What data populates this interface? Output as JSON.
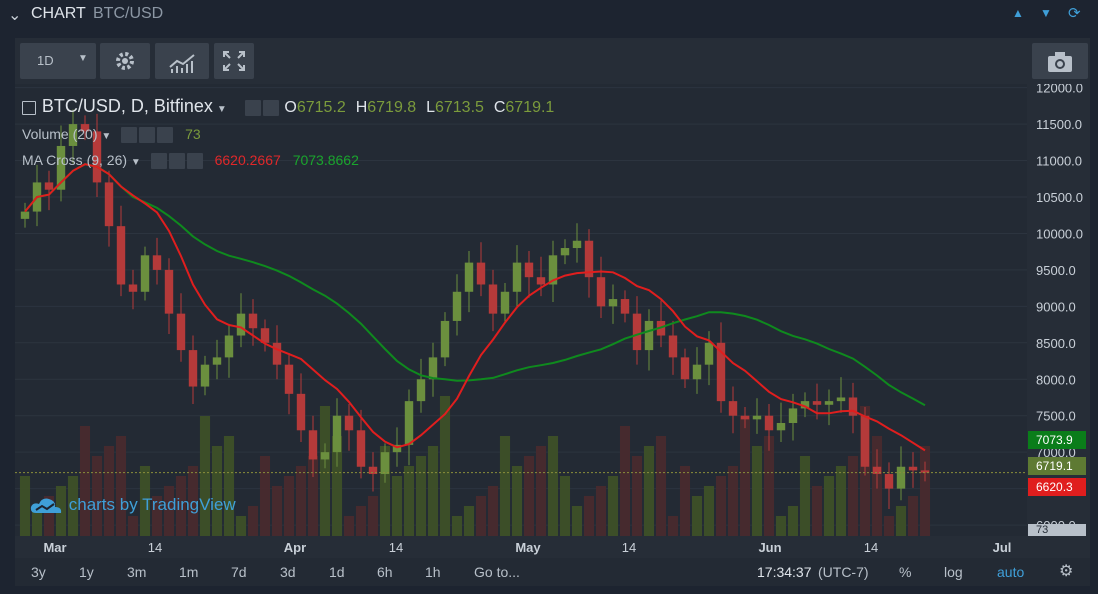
{
  "header": {
    "chevron": "❯",
    "title": "CHART",
    "symbol": "BTC/USD"
  },
  "toolbar": {
    "interval": "1D",
    "camera_icon": "camera-icon"
  },
  "legend": {
    "main": "BTC/USD, D, Bitfinex",
    "o_label": "O",
    "o": "6715.2",
    "h_label": "H",
    "h": "6719.8",
    "l_label": "L",
    "l": "6713.5",
    "c_label": "C",
    "c": "6719.1",
    "volume": "Volume (20)",
    "volume_val": "73",
    "ma": "MA Cross (9, 26)",
    "ma_fast": "6620.2667",
    "ma_slow": "7073.8662"
  },
  "watermark": "charts by TradingView",
  "tags": {
    "slow": "7073.9",
    "last": "6719.1",
    "fast": "6620.3",
    "vol": "73"
  },
  "bottom": {
    "ranges": [
      "3y",
      "1y",
      "3m",
      "1m",
      "7d",
      "3d",
      "1d",
      "6h",
      "1h"
    ],
    "goto": "Go to...",
    "time": "17:34:37",
    "tz": "(UTC-7)",
    "pct": "%",
    "log": "log",
    "auto": "auto"
  },
  "colors": {
    "up": "#6b8f3e",
    "down": "#b53a3a",
    "fast_ma": "#e01e1e",
    "slow_ma": "#0f8a1e",
    "accent": "#3f9fd8"
  },
  "chart_data": {
    "type": "candlestick",
    "yaxis_ticks": [
      12000,
      11500,
      11000,
      10500,
      10000,
      9500,
      9000,
      8500,
      8000,
      7500,
      7000,
      6500,
      6000
    ],
    "ylim": [
      5850,
      12050
    ],
    "xaxis_ticks": [
      "Mar",
      "14",
      "Apr",
      "14",
      "May",
      "14",
      "Jun",
      "14",
      "Jul"
    ],
    "series": [
      {
        "name": "BTC/USD",
        "close": [
          10300,
          10700,
          10600,
          11200,
          11500,
          11400,
          10700,
          10100,
          9300,
          9200,
          9700,
          9500,
          8900,
          8400,
          7900,
          8200,
          8300,
          8600,
          8900,
          8700,
          8500,
          8200,
          7800,
          7300,
          6900,
          7000,
          7500,
          7300,
          6800,
          6700,
          7000,
          7100,
          7700,
          8000,
          8300,
          8800,
          9200,
          9600,
          9300,
          8900,
          9200,
          9600,
          9400,
          9300,
          9700,
          9800,
          9900,
          9400,
          9000,
          9100,
          8900,
          8400,
          8800,
          8600,
          8300,
          8000,
          8200,
          8500,
          7700,
          7500,
          7450,
          7500,
          7300,
          7400,
          7600,
          7700,
          7650,
          7700,
          7750,
          7500,
          6800,
          6700,
          6500,
          6800,
          6750,
          6719
        ]
      },
      {
        "name": "MA Cross fast",
        "last": 6620.2667
      },
      {
        "name": "MA Cross slow",
        "last": 7073.8662
      }
    ]
  }
}
